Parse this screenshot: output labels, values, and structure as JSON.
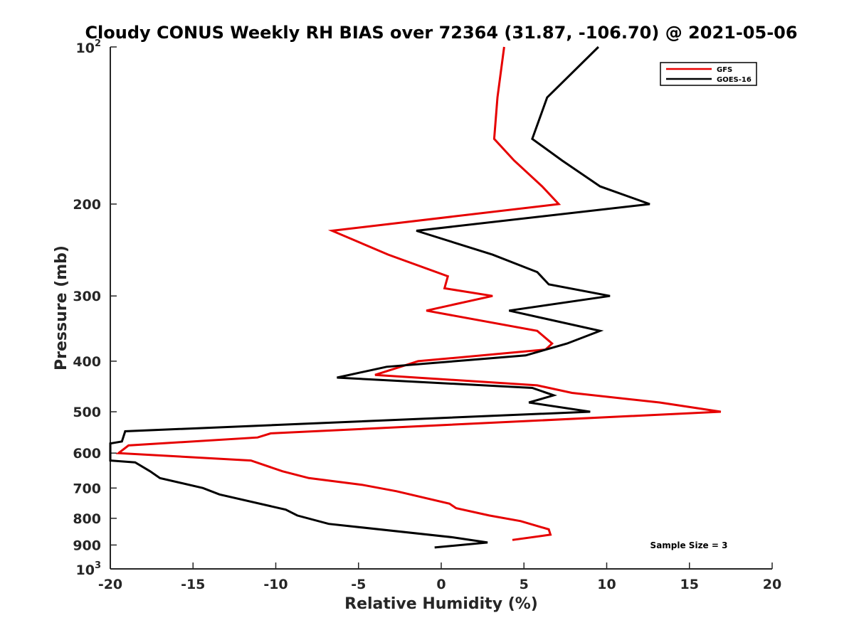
{
  "chart_data": {
    "type": "line",
    "title": "Cloudy CONUS Weekly RH BIAS over 72364 (31.87, -106.70) @ 2021-05-06",
    "xlabel": "Relative Humidity (%)",
    "ylabel": "Pressure (mb)",
    "xlim": [
      -20,
      20
    ],
    "ylim": [
      100,
      1000
    ],
    "y_scale": "log",
    "y_reversed": true,
    "grid": false,
    "legend_position": "top-right",
    "x_ticks": [
      "-20",
      "-15",
      "-10",
      "-5",
      "0",
      "5",
      "10",
      "15",
      "20"
    ],
    "y_ticks": [
      {
        "value": 100,
        "base": "10",
        "exp": "2"
      },
      {
        "value": 200,
        "label": "200"
      },
      {
        "value": 300,
        "label": "300"
      },
      {
        "value": 400,
        "label": "400"
      },
      {
        "value": 500,
        "label": "500"
      },
      {
        "value": 600,
        "label": "600"
      },
      {
        "value": 700,
        "label": "700"
      },
      {
        "value": 800,
        "label": "800"
      },
      {
        "value": 900,
        "label": "900"
      },
      {
        "value": 1000,
        "base": "10",
        "exp": "3"
      }
    ],
    "annotation": "Sample Size = 3",
    "series": [
      {
        "name": "GFS",
        "color": "#e60000",
        "points": [
          [
            3.8,
            100
          ],
          [
            3.4,
            125
          ],
          [
            3.2,
            150
          ],
          [
            4.4,
            165
          ],
          [
            6.1,
            185
          ],
          [
            7.1,
            200
          ],
          [
            -6.6,
            225
          ],
          [
            -3.2,
            250
          ],
          [
            0.4,
            275
          ],
          [
            0.2,
            290
          ],
          [
            3.1,
            300
          ],
          [
            -0.9,
            320
          ],
          [
            5.8,
            350
          ],
          [
            6.7,
            370
          ],
          [
            6.3,
            380
          ],
          [
            -1.4,
            400
          ],
          [
            -4,
            425
          ],
          [
            5.8,
            445
          ],
          [
            7.9,
            460
          ],
          [
            13.2,
            480
          ],
          [
            16.9,
            500
          ],
          [
            -10.3,
            550
          ],
          [
            -11.1,
            560
          ],
          [
            -18.9,
            580
          ],
          [
            -19.5,
            600
          ],
          [
            -11.5,
            620
          ],
          [
            -9.6,
            650
          ],
          [
            -8,
            670
          ],
          [
            -4.8,
            690
          ],
          [
            -2.7,
            710
          ],
          [
            0.5,
            750
          ],
          [
            0.9,
            765
          ],
          [
            2.9,
            790
          ],
          [
            4.8,
            810
          ],
          [
            6.5,
            840
          ],
          [
            6.6,
            860
          ],
          [
            4.3,
            880
          ]
        ]
      },
      {
        "name": "GOES-16",
        "color": "#000000",
        "points": [
          [
            9.5,
            100
          ],
          [
            6.4,
            125
          ],
          [
            5.5,
            150
          ],
          [
            7.3,
            165
          ],
          [
            9.6,
            185
          ],
          [
            12.6,
            200
          ],
          [
            -1.5,
            225
          ],
          [
            3.1,
            250
          ],
          [
            5.8,
            270
          ],
          [
            6.5,
            285
          ],
          [
            10.2,
            300
          ],
          [
            4.1,
            320
          ],
          [
            9.6,
            350
          ],
          [
            7.6,
            370
          ],
          [
            5.1,
            390
          ],
          [
            -3.3,
            410
          ],
          [
            -6.3,
            430
          ],
          [
            5.5,
            450
          ],
          [
            6.8,
            465
          ],
          [
            5.3,
            480
          ],
          [
            9,
            500
          ],
          [
            -19.1,
            545
          ],
          [
            -19.3,
            570
          ],
          [
            -20,
            575
          ],
          [
            -20,
            620
          ],
          [
            -18.5,
            625
          ],
          [
            -17.6,
            650
          ],
          [
            -17,
            670
          ],
          [
            -14.4,
            700
          ],
          [
            -13.4,
            720
          ],
          [
            -9.4,
            770
          ],
          [
            -8.7,
            790
          ],
          [
            -6.8,
            820
          ],
          [
            0.7,
            870
          ],
          [
            2.8,
            890
          ],
          [
            -0.4,
            910
          ]
        ]
      }
    ]
  }
}
